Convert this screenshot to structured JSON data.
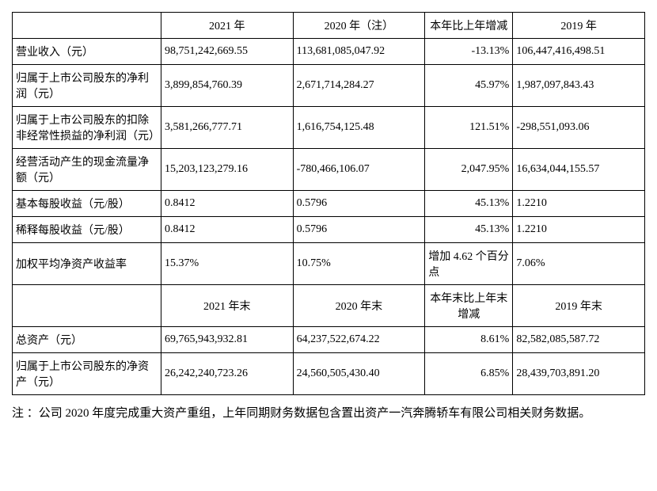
{
  "table": {
    "type": "table",
    "border_color": "#000000",
    "background_color": "#ffffff",
    "font_size": 14,
    "text_color": "#000000",
    "columns": [
      {
        "key": "label",
        "width": "22%",
        "align": "left"
      },
      {
        "key": "y2021",
        "width": "19.5%",
        "align": "right"
      },
      {
        "key": "y2020",
        "width": "19.5%",
        "align": "right"
      },
      {
        "key": "change",
        "width": "13%",
        "align": "right"
      },
      {
        "key": "y2019",
        "width": "19.5%",
        "align": "right"
      }
    ],
    "header1": {
      "empty": "",
      "y2021": "2021 年",
      "y2020": "2020 年（注）",
      "change": "本年比上年增减",
      "y2019": "2019 年"
    },
    "rows1": [
      {
        "label": "营业收入（元）",
        "y2021": "98,751,242,669.55",
        "y2020": "113,681,085,047.92",
        "change": "-13.13%",
        "y2019": "106,447,416,498.51"
      },
      {
        "label": "归属于上市公司股东的净利润（元）",
        "y2021": "3,899,854,760.39",
        "y2020": "2,671,714,284.27",
        "change": "45.97%",
        "y2019": "1,987,097,843.43"
      },
      {
        "label": "归属于上市公司股东的扣除非经常性损益的净利润（元）",
        "y2021": "3,581,266,777.71",
        "y2020": "1,616,754,125.48",
        "change": "121.51%",
        "y2019": "-298,551,093.06"
      },
      {
        "label": "经营活动产生的现金流量净额（元）",
        "y2021": "15,203,123,279.16",
        "y2020": "-780,466,106.07",
        "change": "2,047.95%",
        "y2019": "16,634,044,155.57"
      },
      {
        "label": "基本每股收益（元/股）",
        "y2021": "0.8412",
        "y2020": "0.5796",
        "change": "45.13%",
        "y2019": "1.2210"
      },
      {
        "label": "稀释每股收益（元/股）",
        "y2021": "0.8412",
        "y2020": "0.5796",
        "change": "45.13%",
        "y2019": "1.2210"
      },
      {
        "label": "加权平均净资产收益率",
        "y2021": "15.37%",
        "y2020": "10.75%",
        "change": "增加 4.62 个百分点",
        "y2019": "7.06%"
      }
    ],
    "header2": {
      "empty": "",
      "y2021": "2021 年末",
      "y2020": "2020 年末",
      "change": "本年末比上年末增减",
      "y2019": "2019 年末"
    },
    "rows2": [
      {
        "label": "总资产（元）",
        "y2021": "69,765,943,932.81",
        "y2020": "64,237,522,674.22",
        "change": "8.61%",
        "y2019": "82,582,085,587.72"
      },
      {
        "label": "归属于上市公司股东的净资产（元）",
        "y2021": "26,242,240,723.26",
        "y2020": "24,560,505,430.40",
        "change": "6.85%",
        "y2019": "28,439,703,891.20"
      }
    ]
  },
  "footnote": "注 ：公司 2020 年度完成重大资产重组，上年同期财务数据包含置出资产一汽奔腾轿车有限公司相关财务数据。"
}
